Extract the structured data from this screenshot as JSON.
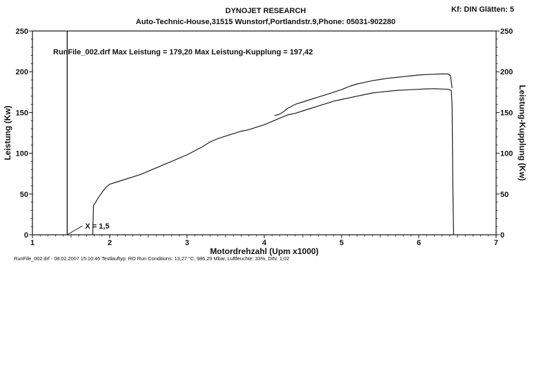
{
  "header": {
    "title": "DYNOJET RESEARCH",
    "subtitle": "Auto-Technic-House,31515 Wunstorf,Portlandstr.9,Phone: 05031-902280",
    "corner_info": "Kf: DIN  Glätten: 5"
  },
  "footer": {
    "run_info": "RunFile_002.drf - 08.02.2007 15:10:46  Testlauftyp: RO  Run Conditions: 13,27 °C, 986,29 Mbar,  Luftfeuchte: 33%, DIN: 1,02"
  },
  "chart_data": {
    "type": "line",
    "annotations": {
      "summary": "RunFile_002.drf Max Leistung = 179,20     Max Leistung-Kupplung = 197,42",
      "marker_label": "X = 1,5",
      "marker_x": 1.45
    },
    "xlabel": "Motordrehzahl (Upm x1000)",
    "ylabel": "Leistung (Kw)",
    "ylabel_right": "Leistung-Kupplung (Kw)",
    "xlim": [
      1,
      7
    ],
    "ylim": [
      0,
      250
    ],
    "x_ticks": [
      "1",
      "2",
      "3",
      "4",
      "5",
      "6",
      "7"
    ],
    "y_ticks": [
      "0",
      "50",
      "100",
      "150",
      "200",
      "250"
    ],
    "grid": false,
    "series": [
      {
        "x": [
          1.78,
          1.79,
          1.82,
          1.85,
          1.9,
          1.95,
          2.0,
          2.1,
          2.2,
          2.3,
          2.4,
          2.5,
          2.6,
          2.7,
          2.8,
          2.9,
          3.0,
          3.1,
          3.2,
          3.3,
          3.4,
          3.5,
          3.6,
          3.7,
          3.8,
          3.9,
          4.0,
          4.1,
          4.2,
          4.3,
          4.4,
          4.5,
          4.6,
          4.7,
          4.8,
          4.9,
          5.0,
          5.1,
          5.2,
          5.3,
          5.4,
          5.5,
          5.6,
          5.7,
          5.8,
          5.9,
          6.0,
          6.1,
          6.2,
          6.3,
          6.38,
          6.42,
          6.43,
          6.44,
          6.45
        ],
        "values": [
          0,
          36,
          40,
          45,
          52,
          58,
          62,
          65,
          68,
          71,
          74,
          78,
          82,
          86,
          90,
          94,
          98,
          103,
          108,
          114,
          118,
          121,
          124,
          127,
          129,
          132,
          135,
          139,
          143,
          147,
          149,
          152,
          155,
          158,
          161,
          164,
          166,
          168,
          170,
          172,
          174,
          175,
          176,
          177,
          177.5,
          178,
          178.5,
          179,
          179.2,
          178.8,
          178.5,
          177,
          160,
          60,
          0
        ]
      },
      {
        "x": [
          4.13,
          4.2,
          4.25,
          4.3,
          4.4,
          4.5,
          4.6,
          4.7,
          4.8,
          4.9,
          5.0,
          5.1,
          5.2,
          5.3,
          5.4,
          5.5,
          5.6,
          5.7,
          5.8,
          5.9,
          6.0,
          6.1,
          6.2,
          6.3,
          6.38,
          6.41,
          6.43
        ],
        "values": [
          146,
          148,
          151,
          155,
          160,
          163,
          166,
          169,
          172,
          175,
          178,
          182,
          185,
          187,
          189,
          190.5,
          192,
          193,
          194,
          195,
          196,
          196.5,
          197,
          197.4,
          197.2,
          195,
          180
        ]
      }
    ]
  }
}
